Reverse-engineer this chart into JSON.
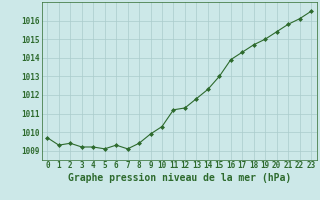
{
  "x": [
    0,
    1,
    2,
    3,
    4,
    5,
    6,
    7,
    8,
    9,
    10,
    11,
    12,
    13,
    14,
    15,
    16,
    17,
    18,
    19,
    20,
    21,
    22,
    23
  ],
  "y": [
    1009.7,
    1009.3,
    1009.4,
    1009.2,
    1009.2,
    1009.1,
    1009.3,
    1009.1,
    1009.4,
    1009.9,
    1010.3,
    1011.2,
    1011.3,
    1011.8,
    1012.3,
    1013.0,
    1013.9,
    1014.3,
    1014.7,
    1015.0,
    1015.4,
    1015.8,
    1016.1,
    1016.5
  ],
  "line_color": "#2d6a2d",
  "marker_color": "#2d6a2d",
  "bg_color": "#cce8e8",
  "grid_color": "#aacccc",
  "title": "Graphe pression niveau de la mer (hPa)",
  "ylim": [
    1008.5,
    1017.0
  ],
  "yticks": [
    1009,
    1010,
    1011,
    1012,
    1013,
    1014,
    1015,
    1016
  ],
  "xticks": [
    0,
    1,
    2,
    3,
    4,
    5,
    6,
    7,
    8,
    9,
    10,
    11,
    12,
    13,
    14,
    15,
    16,
    17,
    18,
    19,
    20,
    21,
    22,
    23
  ],
  "title_fontsize": 7.0,
  "tick_fontsize": 5.5,
  "title_color": "#2d6a2d",
  "tick_color": "#2d6a2d",
  "line_width": 0.8,
  "marker_size": 2.0
}
